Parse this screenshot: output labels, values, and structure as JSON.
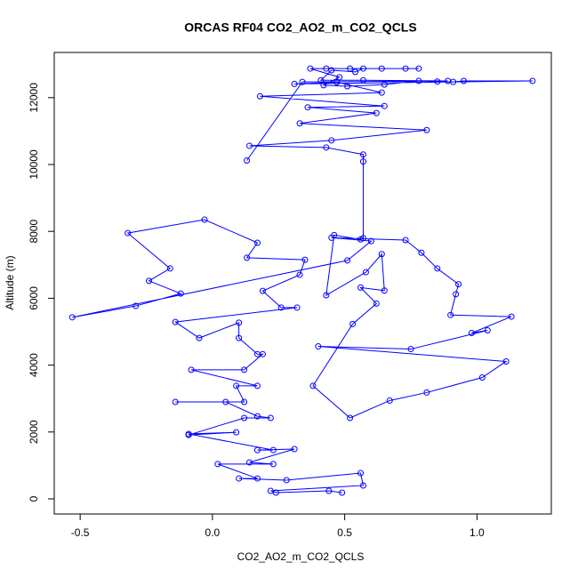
{
  "chart_data": {
    "type": "line",
    "title": "ORCAS RF04 CO2_AO2_m_CO2_QCLS",
    "x_label": "CO2_AO2_m_CO2_QCLS",
    "y_label": "Altitude (m)",
    "marker": "circle",
    "grid": false,
    "xlim": [
      -0.598,
      1.281
    ],
    "ylim": [
      -452,
      13351
    ],
    "xticks": [
      -0.5,
      {
        "value": 0,
        "label": "0.0"
      },
      0.5,
      {
        "value": 1,
        "label": "1.0"
      }
    ],
    "yticks": [
      0,
      2000,
      4000,
      6000,
      8000,
      10000,
      12000
    ],
    "x": [
      0.49,
      0.44,
      0.24,
      0.22,
      0.57,
      0.56,
      0.28,
      0.1,
      0.17,
      0.02,
      0.23,
      0.14,
      0.31,
      0.17,
      0.23,
      -0.09,
      0.09,
      -0.09,
      0.12,
      0.22,
      0.17,
      0.05,
      -0.14,
      0.12,
      0.09,
      0.17,
      -0.08,
      0.12,
      0.19,
      0.17,
      0.1,
      0.1,
      -0.05,
      -0.14,
      0.32,
      0.26,
      0.19,
      0.33,
      0.35,
      0.13,
      0.17,
      -0.03,
      -0.32,
      -0.16,
      -0.24,
      -0.12,
      -0.29,
      -0.53,
      0.51,
      0.6,
      0.45,
      0.73,
      0.79,
      0.85,
      0.93,
      0.92,
      0.9,
      1.13,
      0.98,
      1.04,
      0.75,
      0.4,
      1.11,
      1.02,
      0.81,
      0.67,
      0.52,
      0.38,
      0.53,
      0.62,
      0.56,
      0.65,
      0.64,
      0.58,
      0.43,
      0.46,
      0.56,
      0.57,
      0.57,
      0.57,
      0.43,
      0.14,
      0.45,
      0.81,
      0.33,
      0.62,
      0.36,
      0.65,
      0.18,
      0.64,
      0.47,
      0.31,
      1.21,
      0.95,
      0.91,
      0.85,
      0.78,
      0.65,
      0.51,
      0.42,
      0.48,
      0.37,
      0.43,
      0.52,
      0.64,
      0.73,
      0.78,
      0.57,
      0.54,
      0.45,
      0.41,
      0.57,
      0.89,
      0.34,
      0.13
    ],
    "series": [
      {
        "color": "#0000ff",
        "values": [
          186,
          240,
          186,
          240,
          400,
          770,
          560,
          610,
          610,
          1040,
          1040,
          1090,
          1490,
          1460,
          1460,
          1940,
          1990,
          1910,
          2420,
          2420,
          2470,
          2900,
          2900,
          2900,
          3380,
          3380,
          3860,
          3860,
          4330,
          4330,
          4810,
          5270,
          4810,
          5290,
          5720,
          5720,
          6220,
          6700,
          7150,
          7210,
          7660,
          8350,
          7950,
          6890,
          6520,
          6140,
          5770,
          5430,
          7130,
          7710,
          7810,
          7740,
          7360,
          6890,
          6420,
          6120,
          5500,
          5450,
          4960,
          5040,
          4480,
          4560,
          4110,
          3630,
          3180,
          2940,
          2420,
          3380,
          5230,
          5840,
          6320,
          6230,
          7320,
          6780,
          6090,
          7890,
          7760,
          7800,
          10090,
          10300,
          10510,
          10560,
          10720,
          11030,
          11230,
          11540,
          11710,
          11750,
          12040,
          12150,
          12460,
          12410,
          12500,
          12500,
          12470,
          12480,
          12500,
          12390,
          12340,
          12370,
          12610,
          12870,
          12870,
          12870,
          12870,
          12870,
          12870,
          12870,
          12770,
          12820,
          12520,
          12520,
          12500,
          12470,
          10120
        ]
      }
    ]
  }
}
